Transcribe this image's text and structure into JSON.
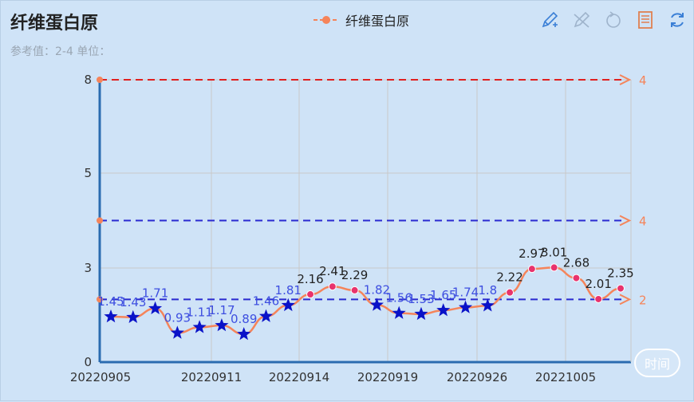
{
  "title": "纤维蛋白原",
  "subtitle": "参考值：2-4  单位：",
  "legend": {
    "label": "纤维蛋白原",
    "color": "#f5845a"
  },
  "toolbar": {
    "icons": [
      "pencil-icon",
      "eraser-icon",
      "restore-icon",
      "data-view-icon",
      "refresh-icon"
    ],
    "colors": {
      "pencil": "#3a7fd6",
      "eraser": "#9fb4cc",
      "restore": "#9fb4cc",
      "dataview": "#e08050",
      "refresh": "#3a7fd6"
    }
  },
  "datazoom_label": "时间",
  "colors": {
    "line": "#f5845a",
    "point_normal": "#e8336d",
    "star": "#0a12c8",
    "star_label": "#3e4fe0",
    "upper_line": "#e02020",
    "ref_line": "#2a2ad0",
    "axis_right": "#f5845a",
    "axis_left": "#2b6cb0"
  },
  "chart_data": {
    "type": "line",
    "title": "纤维蛋白原",
    "x_ticks": [
      "20220905",
      "20220911",
      "20220914",
      "20220919",
      "20220926",
      "20221005"
    ],
    "y_ticks": [
      0,
      3,
      5,
      8
    ],
    "ylim": [
      0,
      8
    ],
    "series": [
      {
        "name": "纤维蛋白原",
        "values": [
          1.45,
          1.43,
          1.71,
          0.93,
          1.11,
          1.17,
          0.89,
          1.46,
          1.81,
          2.16,
          2.41,
          2.29,
          1.82,
          1.56,
          1.53,
          1.65,
          1.74,
          1.8,
          2.22,
          2.97,
          3.01,
          2.68,
          2.01,
          2.35
        ],
        "labels": [
          "1.45",
          "1.43",
          "1.71",
          "0.93",
          "1.11",
          "1.17",
          "0.89",
          "1.46",
          "1.81",
          "2.16",
          "2.41",
          "2.29",
          "1.82",
          "1.56",
          "1.53",
          "1.65",
          "1.74",
          "1.8",
          "2.22",
          "2.97",
          "3.01",
          "2.68",
          "2.01",
          "2.35"
        ]
      }
    ],
    "reference_lines": [
      {
        "value": 8,
        "label": "4",
        "style": "dashed-red"
      },
      {
        "value": 4,
        "label": "4",
        "style": "dashed-blue"
      },
      {
        "value": 2,
        "label": "2",
        "style": "dashed-blue"
      }
    ],
    "grid": true
  }
}
